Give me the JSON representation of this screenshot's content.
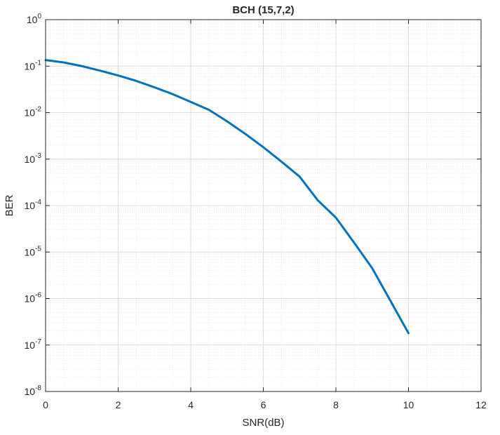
{
  "chart_data": {
    "type": "line",
    "title": "BCH (15,7,2)",
    "xlabel": "SNR(dB)",
    "ylabel": "BER",
    "xlim": [
      0,
      12
    ],
    "ylim": [
      1e-08,
      1
    ],
    "yscale": "log",
    "grid": true,
    "minor_grid": true,
    "legend": "none",
    "x_ticks": [
      0,
      2,
      4,
      6,
      8,
      10,
      12
    ],
    "x_tick_labels": [
      "0",
      "2",
      "4",
      "6",
      "8",
      "10",
      "12"
    ],
    "y_ticks": [
      {
        "base": "10",
        "exp": "-8"
      },
      {
        "base": "10",
        "exp": "-7"
      },
      {
        "base": "10",
        "exp": "-6"
      },
      {
        "base": "10",
        "exp": "-5"
      },
      {
        "base": "10",
        "exp": "-4"
      },
      {
        "base": "10",
        "exp": "-3"
      },
      {
        "base": "10",
        "exp": "-2"
      },
      {
        "base": "10",
        "exp": "-1"
      },
      {
        "base": "10",
        "exp": "0"
      }
    ],
    "series": [
      {
        "color": "#0072bd",
        "x": [
          0,
          0.5,
          1,
          1.5,
          2,
          2.5,
          3,
          3.5,
          4,
          4.5,
          5,
          5.5,
          6,
          6.5,
          7,
          7.5,
          8,
          8.5,
          9,
          9.5,
          10
        ],
        "y": [
          0.135,
          0.12,
          0.1,
          0.08,
          0.063,
          0.048,
          0.035,
          0.025,
          0.017,
          0.0115,
          0.0065,
          0.0035,
          0.0018,
          0.00088,
          0.00042,
          0.00013,
          5.5e-05,
          1.6e-05,
          4.5e-06,
          9e-07,
          1.8e-07
        ]
      }
    ]
  }
}
